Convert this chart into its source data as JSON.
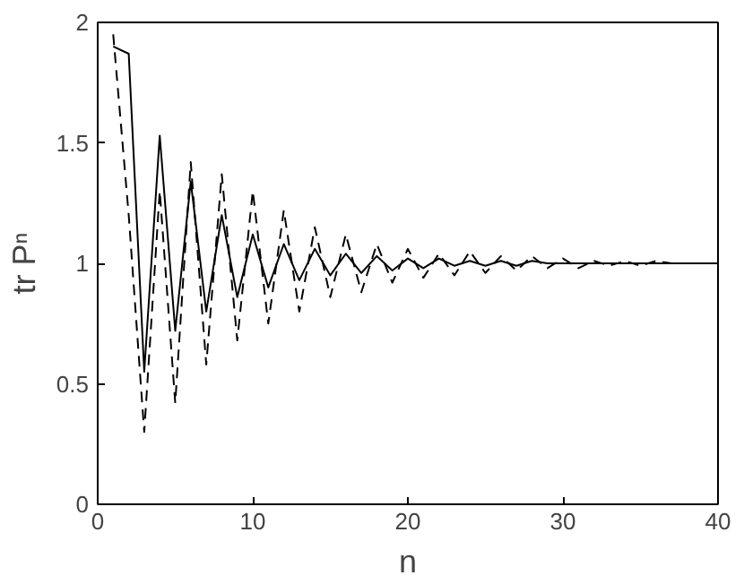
{
  "chart_data": {
    "type": "line",
    "xlabel": "n",
    "ylabel": "tr Pⁿ",
    "x": [
      1,
      2,
      3,
      4,
      5,
      6,
      7,
      8,
      9,
      10,
      11,
      12,
      13,
      14,
      15,
      16,
      17,
      18,
      19,
      20,
      21,
      22,
      23,
      24,
      25,
      26,
      27,
      28,
      29,
      30,
      31,
      32,
      33,
      34,
      35,
      36,
      37,
      38,
      39,
      40
    ],
    "series": [
      {
        "color": "#000000",
        "line_style": "solid",
        "values": [
          1.9,
          1.87,
          0.55,
          1.53,
          0.72,
          1.34,
          0.8,
          1.2,
          0.86,
          1.12,
          0.9,
          1.08,
          0.93,
          1.06,
          0.95,
          1.04,
          0.96,
          1.03,
          0.97,
          1.02,
          0.98,
          1.02,
          0.99,
          1.01,
          0.99,
          1.01,
          0.99,
          1.01,
          1.0,
          1.0,
          1.0,
          1.0,
          1.0,
          1.0,
          1.0,
          1.0,
          1.0,
          1.0,
          1.0,
          1.0
        ]
      },
      {
        "color": "#000000",
        "line_style": "dashed",
        "values": [
          1.95,
          1.2,
          0.3,
          1.3,
          0.42,
          1.42,
          0.58,
          1.37,
          0.68,
          1.3,
          0.75,
          1.22,
          0.8,
          1.15,
          0.86,
          1.12,
          0.88,
          1.08,
          0.92,
          1.06,
          0.94,
          1.04,
          0.95,
          1.05,
          0.96,
          1.03,
          0.97,
          1.03,
          0.98,
          1.02,
          0.98,
          1.01,
          0.99,
          1.01,
          0.99,
          1.01,
          1.0,
          1.0,
          1.0,
          1.0
        ]
      }
    ],
    "xlim": [
      0,
      40
    ],
    "xticks": [
      0,
      10,
      20,
      30,
      40
    ],
    "ylim": [
      0,
      2
    ],
    "yticks": [
      0,
      0.5,
      1,
      1.5,
      2
    ],
    "marker": "none"
  }
}
